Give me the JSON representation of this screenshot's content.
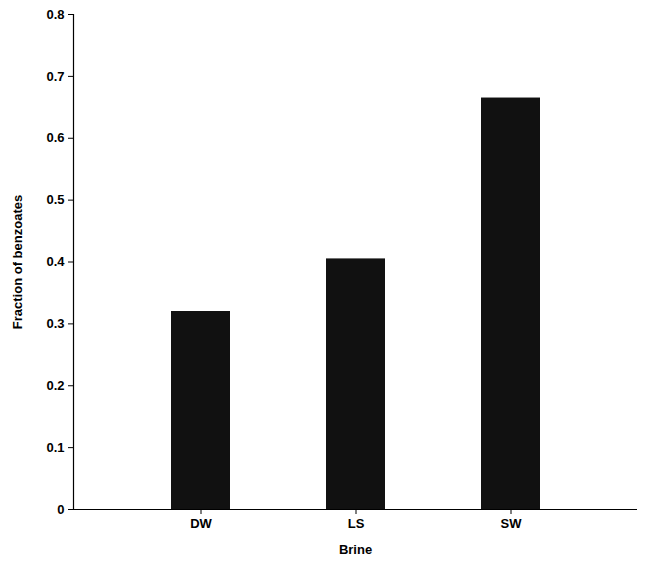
{
  "chart_data": {
    "type": "bar",
    "x_label": "Brine",
    "y_label": "Fraction of benzoates",
    "categories": [
      "DW",
      "LS",
      "SW"
    ],
    "values": [
      0.32,
      0.405,
      0.665
    ],
    "color": "#111111",
    "ylim": [
      0,
      0.8
    ],
    "yticks": [
      0,
      0.1,
      0.2,
      0.3,
      0.4,
      0.5,
      0.6,
      0.7,
      0.8
    ],
    "grid": false
  }
}
